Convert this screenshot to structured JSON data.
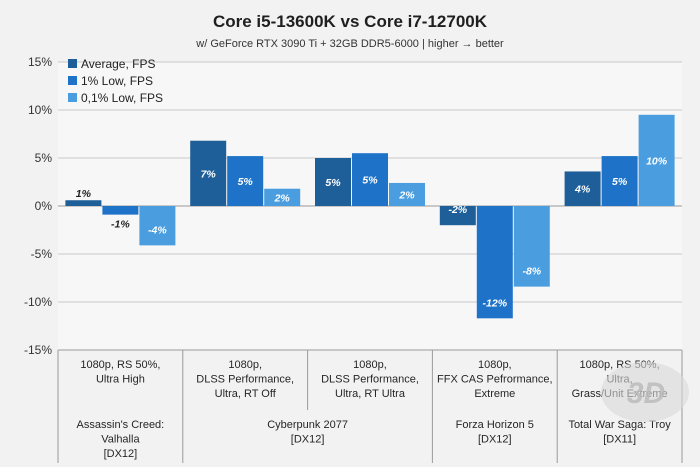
{
  "chart_data": {
    "type": "bar",
    "title": "Core i5-13600K vs Core i7-12700K",
    "subtitle": "w/ GeForce RTX 3090 Ti + 32GB DDR5-6000 | higher → better",
    "ylim": [
      -15,
      15
    ],
    "yticks": [
      15,
      10,
      5,
      0,
      -5,
      -10,
      -15
    ],
    "ytick_labels": [
      "15%",
      "10%",
      "5%",
      "0%",
      "-5%",
      "-10%",
      "-15%"
    ],
    "grid": true,
    "legend_position": "top-left",
    "categories": [
      {
        "setting": [
          "1080p, RS 50%,",
          "Ultra High"
        ]
      },
      {
        "setting": [
          "1080p,",
          "DLSS Performance,",
          "Ultra, RT Off"
        ]
      },
      {
        "setting": [
          "1080p,",
          "DLSS Performance,",
          "Ultra, RT Ultra"
        ]
      },
      {
        "setting": [
          "1080p,",
          "FFX CAS Pefrormance,",
          "Extreme"
        ]
      },
      {
        "setting": [
          "1080p, RS 50%,",
          "Ultra,",
          "Grass/Unit Extreme"
        ]
      }
    ],
    "groups": [
      {
        "lines": [
          "Assassin's Creed:",
          "Valhalla",
          "[DX12]"
        ],
        "span": [
          0,
          0
        ]
      },
      {
        "lines": [
          "Cyberpunk 2077",
          "[DX12]"
        ],
        "span": [
          1,
          2
        ]
      },
      {
        "lines": [
          "Forza Horizon 5",
          "[DX12]"
        ],
        "span": [
          3,
          3
        ]
      },
      {
        "lines": [
          "Total War Saga: Troy",
          "[DX11]"
        ],
        "span": [
          4,
          4
        ]
      }
    ],
    "series": [
      {
        "name": "Average, FPS",
        "color": "#1f5f99",
        "values": [
          0.6,
          6.8,
          5.0,
          -2.0,
          3.6
        ],
        "labels": [
          "1%",
          "7%",
          "5%",
          "-2%",
          "4%"
        ]
      },
      {
        "name": "1% Low, FPS",
        "color": "#1e73c8",
        "values": [
          -0.9,
          5.2,
          5.5,
          -11.7,
          5.2
        ],
        "labels": [
          "-1%",
          "5%",
          "5%",
          "-12%",
          "5%"
        ]
      },
      {
        "name": "0,1% Low, FPS",
        "color": "#4a9ee0",
        "values": [
          -4.1,
          1.8,
          2.4,
          -8.4,
          9.5
        ],
        "labels": [
          "-4%",
          "2%",
          "2%",
          "-8%",
          "10%"
        ]
      }
    ]
  }
}
